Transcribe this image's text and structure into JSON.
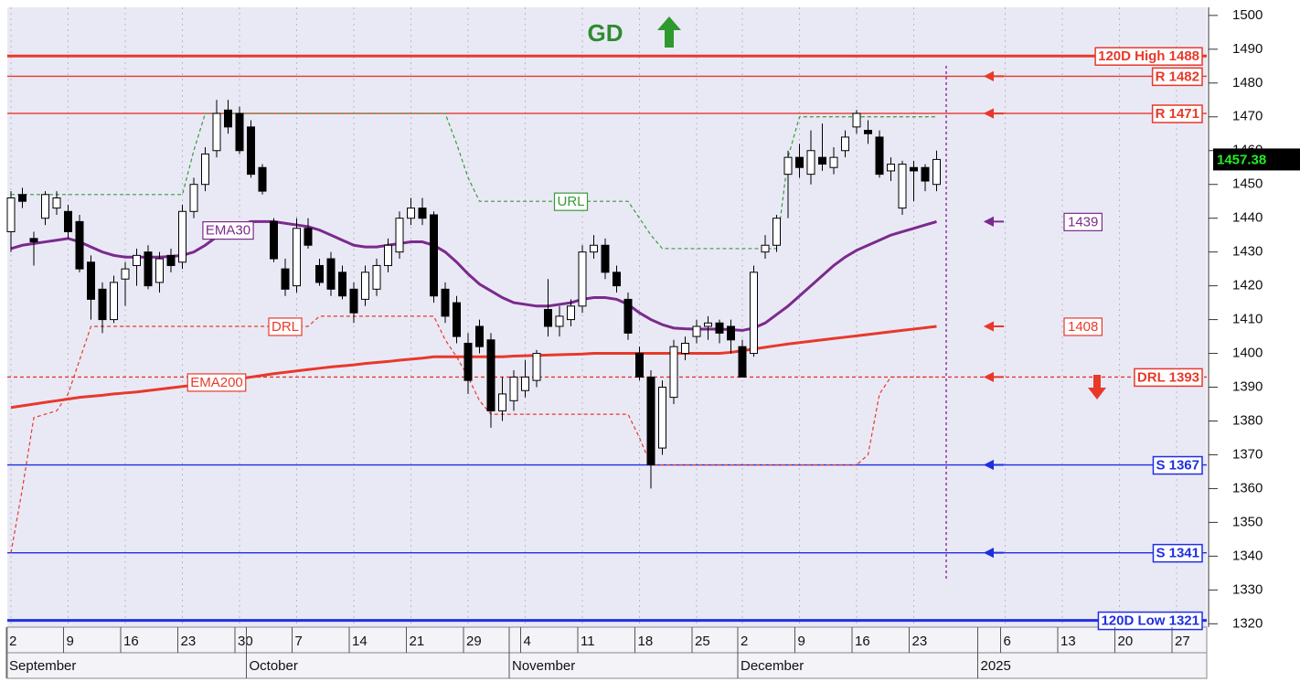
{
  "chart_data": {
    "type": "candlestick",
    "title": "GD",
    "categories": [
      "2",
      null,
      null,
      null,
      null,
      "9",
      null,
      null,
      null,
      null,
      "16",
      null,
      null,
      null,
      null,
      "23",
      null,
      null,
      null,
      null,
      "30",
      null,
      null,
      null,
      null,
      "7",
      null,
      null,
      null,
      null,
      "14",
      null,
      null,
      null,
      null,
      "21",
      null,
      null,
      null,
      null,
      "29",
      null,
      null,
      null,
      null,
      "4",
      null,
      null,
      null,
      null,
      "11",
      null,
      null,
      null,
      null,
      "18",
      null,
      null,
      null,
      null,
      "25",
      null,
      null,
      null,
      "2",
      null,
      null,
      null,
      null,
      "9",
      null,
      null,
      null,
      null,
      "16",
      null,
      null,
      null,
      null,
      "23",
      null,
      null,
      null,
      null,
      null,
      null,
      null,
      "6",
      null,
      null,
      null,
      null,
      "13",
      null,
      null,
      null,
      null,
      "20",
      null,
      null,
      null,
      null,
      "27",
      null,
      null
    ],
    "months": [
      "September",
      null,
      null,
      null,
      null,
      null,
      null,
      null,
      null,
      null,
      null,
      null,
      null,
      null,
      null,
      null,
      null,
      null,
      null,
      null,
      null,
      "October",
      null,
      null,
      null,
      null,
      null,
      null,
      null,
      null,
      null,
      null,
      null,
      null,
      null,
      null,
      null,
      null,
      null,
      null,
      null,
      null,
      null,
      null,
      "November",
      null,
      null,
      null,
      null,
      null,
      null,
      null,
      null,
      null,
      null,
      null,
      null,
      null,
      null,
      null,
      null,
      null,
      null,
      null,
      "December",
      null,
      null,
      null,
      null,
      null,
      null,
      null,
      null,
      null,
      null,
      null,
      null,
      null,
      null,
      null,
      null,
      null,
      null,
      null,
      null,
      "2025",
      null,
      null,
      null,
      null,
      null,
      null,
      null,
      null,
      null,
      null,
      null,
      null,
      null,
      null,
      null,
      null,
      null,
      null
    ],
    "open": [
      1436,
      1447,
      1434,
      1440,
      1443,
      1442,
      1439,
      1427,
      1419,
      1410,
      1422,
      1426,
      1430,
      1421,
      1429,
      1427,
      1442,
      1450,
      1460,
      1472,
      1471,
      1467,
      1455,
      1439,
      1425,
      1420,
      1437,
      1426,
      1428,
      1424,
      1419,
      1416,
      1419,
      1426,
      1430,
      1440,
      1443,
      1441,
      1419,
      1415,
      1403,
      1408,
      1404,
      1383,
      1386,
      1389,
      1392,
      1413,
      1408,
      1410,
      1414,
      1430,
      1432,
      1424,
      1416,
      1400,
      1393,
      1372,
      1387,
      1400,
      1405,
      1408,
      1409,
      1408,
      1402,
      1400,
      1430,
      1432,
      1453,
      1458,
      1453,
      1458,
      1455,
      1460,
      1467,
      1466,
      1464,
      1454,
      1443,
      1455,
      1455,
      1450,
      null,
      null,
      null,
      null,
      null,
      null,
      null,
      null,
      null,
      null,
      null,
      null,
      null,
      null,
      null,
      null,
      null,
      null,
      null,
      null,
      null,
      null,
      null
    ],
    "high": [
      1448,
      1449,
      1436,
      1448,
      1448,
      1444,
      1441,
      1429,
      1421,
      1423,
      1427,
      1431,
      1432,
      1430,
      1431,
      1444,
      1452,
      1461,
      1475,
      1475,
      1473,
      1469,
      1456,
      1440,
      1428,
      1440,
      1440,
      1428,
      1430,
      1426,
      1421,
      1426,
      1428,
      1434,
      1442,
      1446,
      1446,
      1442,
      1421,
      1417,
      1406,
      1410,
      1406,
      1393,
      1395,
      1398,
      1401,
      1422,
      1414,
      1416,
      1432,
      1435,
      1434,
      1426,
      1418,
      1402,
      1395,
      1392,
      1404,
      1405,
      1410,
      1411,
      1410,
      1410,
      1404,
      1426,
      1435,
      1441,
      1460,
      1462,
      1466,
      1468,
      1461,
      1466,
      1472,
      1469,
      1466,
      1458,
      1457,
      1457,
      1456,
      1460,
      null,
      null,
      null,
      null,
      null,
      null,
      null,
      null,
      null,
      null,
      null,
      null,
      null,
      null,
      null,
      null,
      null,
      null,
      null,
      null,
      null,
      null,
      null
    ],
    "low": [
      1430,
      1443,
      1426,
      1438,
      1441,
      1434,
      1424,
      1410,
      1406,
      1409,
      1414,
      1420,
      1419,
      1418,
      1424,
      1425,
      1440,
      1448,
      1458,
      1465,
      1459,
      1452,
      1447,
      1427,
      1417,
      1418,
      1431,
      1420,
      1417,
      1416,
      1409,
      1414,
      1417,
      1424,
      1428,
      1438,
      1438,
      1415,
      1409,
      1403,
      1388,
      1400,
      1378,
      1380,
      1383,
      1387,
      1390,
      1405,
      1405,
      1408,
      1412,
      1428,
      1422,
      1418,
      1404,
      1392,
      1360,
      1370,
      1385,
      1398,
      1403,
      1404,
      1403,
      1400,
      1393,
      1399,
      1428,
      1430,
      1440,
      1452,
      1450,
      1454,
      1453,
      1458,
      1465,
      1462,
      1452,
      1451,
      1441,
      1445,
      1448,
      1448,
      null,
      null,
      null,
      null,
      null,
      null,
      null,
      null,
      null,
      null,
      null,
      null,
      null,
      null,
      null,
      null,
      null,
      null,
      null,
      null,
      null,
      null,
      null
    ],
    "close": [
      1446,
      1445,
      1433,
      1447,
      1446,
      1436,
      1425,
      1416,
      1410,
      1421,
      1425,
      1429,
      1420,
      1428,
      1426,
      1442,
      1450,
      1459,
      1471,
      1467,
      1460,
      1453,
      1448,
      1428,
      1419,
      1437,
      1432,
      1421,
      1419,
      1417,
      1412,
      1424,
      1426,
      1432,
      1440,
      1443,
      1440,
      1417,
      1411,
      1405,
      1392,
      1402,
      1383,
      1388,
      1393,
      1393,
      1400,
      1408,
      1411,
      1414,
      1430,
      1432,
      1424,
      1420,
      1406,
      1393,
      1367,
      1390,
      1402,
      1403,
      1408,
      1409,
      1406,
      1404,
      1393,
      1424,
      1432,
      1440,
      1458,
      1455,
      1460,
      1456,
      1458,
      1464,
      1471,
      1465,
      1453,
      1456,
      1456,
      1454,
      1451,
      1457.38,
      null,
      null,
      null,
      null,
      null,
      null,
      null,
      null,
      null,
      null,
      null,
      null,
      null,
      null,
      null,
      null,
      null,
      null,
      null,
      null,
      null,
      null,
      null
    ],
    "up_color": "#ffffff",
    "down_color": "#000000",
    "lines": [
      {
        "name": "EMA30",
        "color": "#7b2a8c",
        "dashed": false,
        "values": [
          1431,
          1432,
          1432.5,
          1433,
          1433.5,
          1434,
          1433,
          1431.5,
          1430,
          1429,
          1428.5,
          1428.5,
          1428.5,
          1428.5,
          1428.7,
          1429,
          1430,
          1432,
          1434.5,
          1436.5,
          1438,
          1439,
          1439,
          1439,
          1438.5,
          1438,
          1437.5,
          1436.5,
          1435,
          1433.5,
          1432,
          1431.5,
          1431.5,
          1432,
          1432.5,
          1433,
          1433,
          1432,
          1430,
          1427,
          1423.5,
          1420.5,
          1418.5,
          1416.5,
          1415,
          1414.5,
          1414,
          1414,
          1414.5,
          1415,
          1416,
          1416.5,
          1416.5,
          1416,
          1414.5,
          1412,
          1410,
          1408.5,
          1407.5,
          1407.3,
          1407.2,
          1407.2,
          1407.2,
          1407,
          1406.8,
          1407.5,
          1409,
          1411.5,
          1414,
          1417,
          1420,
          1423,
          1426,
          1428.5,
          1430.5,
          1432,
          1433.5,
          1435,
          1436,
          1437,
          1438,
          1439,
          null,
          null,
          null,
          null,
          null,
          null,
          null,
          null,
          null,
          null,
          null,
          null,
          null,
          null,
          null,
          null,
          null,
          null,
          null,
          null,
          null,
          null,
          null
        ]
      },
      {
        "name": "EMA200",
        "color": "#e8392a",
        "dashed": false,
        "values": [
          1384,
          1384.5,
          1385,
          1385.5,
          1386,
          1386.5,
          1387,
          1387.3,
          1387.6,
          1388,
          1388.3,
          1388.6,
          1389,
          1389.4,
          1389.8,
          1390.2,
          1390.6,
          1391,
          1391.5,
          1392,
          1392.5,
          1393,
          1393.5,
          1394,
          1394.4,
          1394.8,
          1395.2,
          1395.6,
          1396,
          1396.3,
          1396.6,
          1397,
          1397.3,
          1397.6,
          1398,
          1398.3,
          1398.6,
          1399,
          1399,
          1399,
          1399,
          1399,
          1399,
          1399,
          1399.2,
          1399.3,
          1399.4,
          1399.5,
          1399.6,
          1399.7,
          1399.8,
          1400,
          1400,
          1400,
          1400,
          1400,
          1400,
          1400,
          1400,
          1400,
          1400,
          1400,
          1400,
          1400.3,
          1400.8,
          1401.3,
          1401.8,
          1402.3,
          1402.8,
          1403.2,
          1403.6,
          1404,
          1404.4,
          1404.8,
          1405.2,
          1405.6,
          1406,
          1406.4,
          1406.8,
          1407.2,
          1407.6,
          1408,
          null,
          null,
          null,
          null,
          null,
          null,
          null,
          null,
          null,
          null,
          null,
          null,
          null,
          null,
          null,
          null,
          null,
          null,
          null,
          null,
          null,
          null,
          null
        ]
      },
      {
        "name": "URL",
        "color": "#3a9a3a",
        "dashed": true,
        "values": [
          1447,
          1447,
          1447,
          1447,
          1447,
          1447,
          1447,
          1447,
          1447,
          1447,
          1447,
          1447,
          1447,
          1447,
          1447,
          1447,
          1460,
          1471,
          1471,
          1471,
          1471,
          1471,
          1471,
          1471,
          1471,
          1471,
          1471,
          1471,
          1471,
          1471,
          1471,
          1471,
          1471,
          1471,
          1471,
          1471,
          1471,
          1471,
          1471,
          1462,
          1452,
          1445,
          1445,
          1445,
          1445,
          1445,
          1445,
          1445,
          1445,
          1445,
          1445,
          1445,
          1445,
          1445,
          1445,
          1440,
          1435,
          1431,
          1431,
          1431,
          1431,
          1431,
          1431,
          1431,
          1431,
          1431,
          1431,
          1431,
          1458,
          1470,
          1470,
          1470,
          1470,
          1470,
          1470,
          1470,
          1470,
          1470,
          1470,
          1470,
          1470,
          1470,
          null,
          null,
          null,
          null,
          null,
          null,
          null,
          null,
          null,
          null,
          null,
          null,
          null,
          null,
          null,
          null,
          null,
          null,
          null,
          null,
          null,
          null,
          null
        ]
      },
      {
        "name": "DRL",
        "color": "#e8392a",
        "dashed": true,
        "values": [
          1341,
          1360,
          1381,
          1382,
          1383,
          1388,
          1398,
          1408,
          1408,
          1408,
          1408,
          1408,
          1408,
          1408,
          1408,
          1408,
          1408,
          1408,
          1408,
          1408,
          1408,
          1408,
          1408,
          1408,
          1408,
          1408,
          1408,
          1411,
          1411,
          1411,
          1411,
          1411,
          1411,
          1411,
          1411,
          1411,
          1411,
          1411,
          1404,
          1399,
          1393,
          1386,
          1382,
          1382,
          1382,
          1382,
          1382,
          1382,
          1382,
          1382,
          1382,
          1382,
          1382,
          1382,
          1382,
          1375,
          1367,
          1367,
          1367,
          1367,
          1367,
          1367,
          1367,
          1367,
          1367,
          1367,
          1367,
          1367,
          1367,
          1367,
          1367,
          1367,
          1367,
          1367,
          1367,
          1370,
          1388,
          1393,
          1393,
          1393,
          1393,
          1393,
          null,
          null,
          null,
          null,
          null,
          null,
          null,
          null,
          null,
          null,
          null,
          null,
          null,
          null,
          null,
          null,
          null,
          null,
          null,
          null,
          null,
          null,
          null
        ]
      }
    ],
    "levels": [
      {
        "label": "120D High 1488",
        "value": 1488,
        "color": "#e8392a"
      },
      {
        "label": "R 1482",
        "value": 1482,
        "color": "#e8392a"
      },
      {
        "label": "R 1471",
        "value": 1471,
        "color": "#e8392a"
      },
      {
        "label": "DRL 1393",
        "value": 1393,
        "color": "#e8392a",
        "dashed": true
      },
      {
        "label": "S 1367",
        "value": 1367,
        "color": "#1f2fe0"
      },
      {
        "label": "S 1341",
        "value": 1341,
        "color": "#1f2fe0"
      },
      {
        "label": "120D Low 1321",
        "value": 1321,
        "color": "#1f2fe0"
      }
    ],
    "markers": [
      {
        "label": "1439",
        "value": 1439,
        "color": "#7b2a8c"
      },
      {
        "label": "1408",
        "value": 1408,
        "color": "#e8392a"
      }
    ],
    "last_price": 1457.38,
    "ylim": [
      1319,
      1502.4
    ],
    "yticks": [
      1320,
      1330,
      1340,
      1350,
      1360,
      1370,
      1380,
      1390,
      1400,
      1410,
      1420,
      1430,
      1440,
      1450,
      1460,
      1470,
      1480,
      1490,
      1500
    ],
    "grid": true
  }
}
